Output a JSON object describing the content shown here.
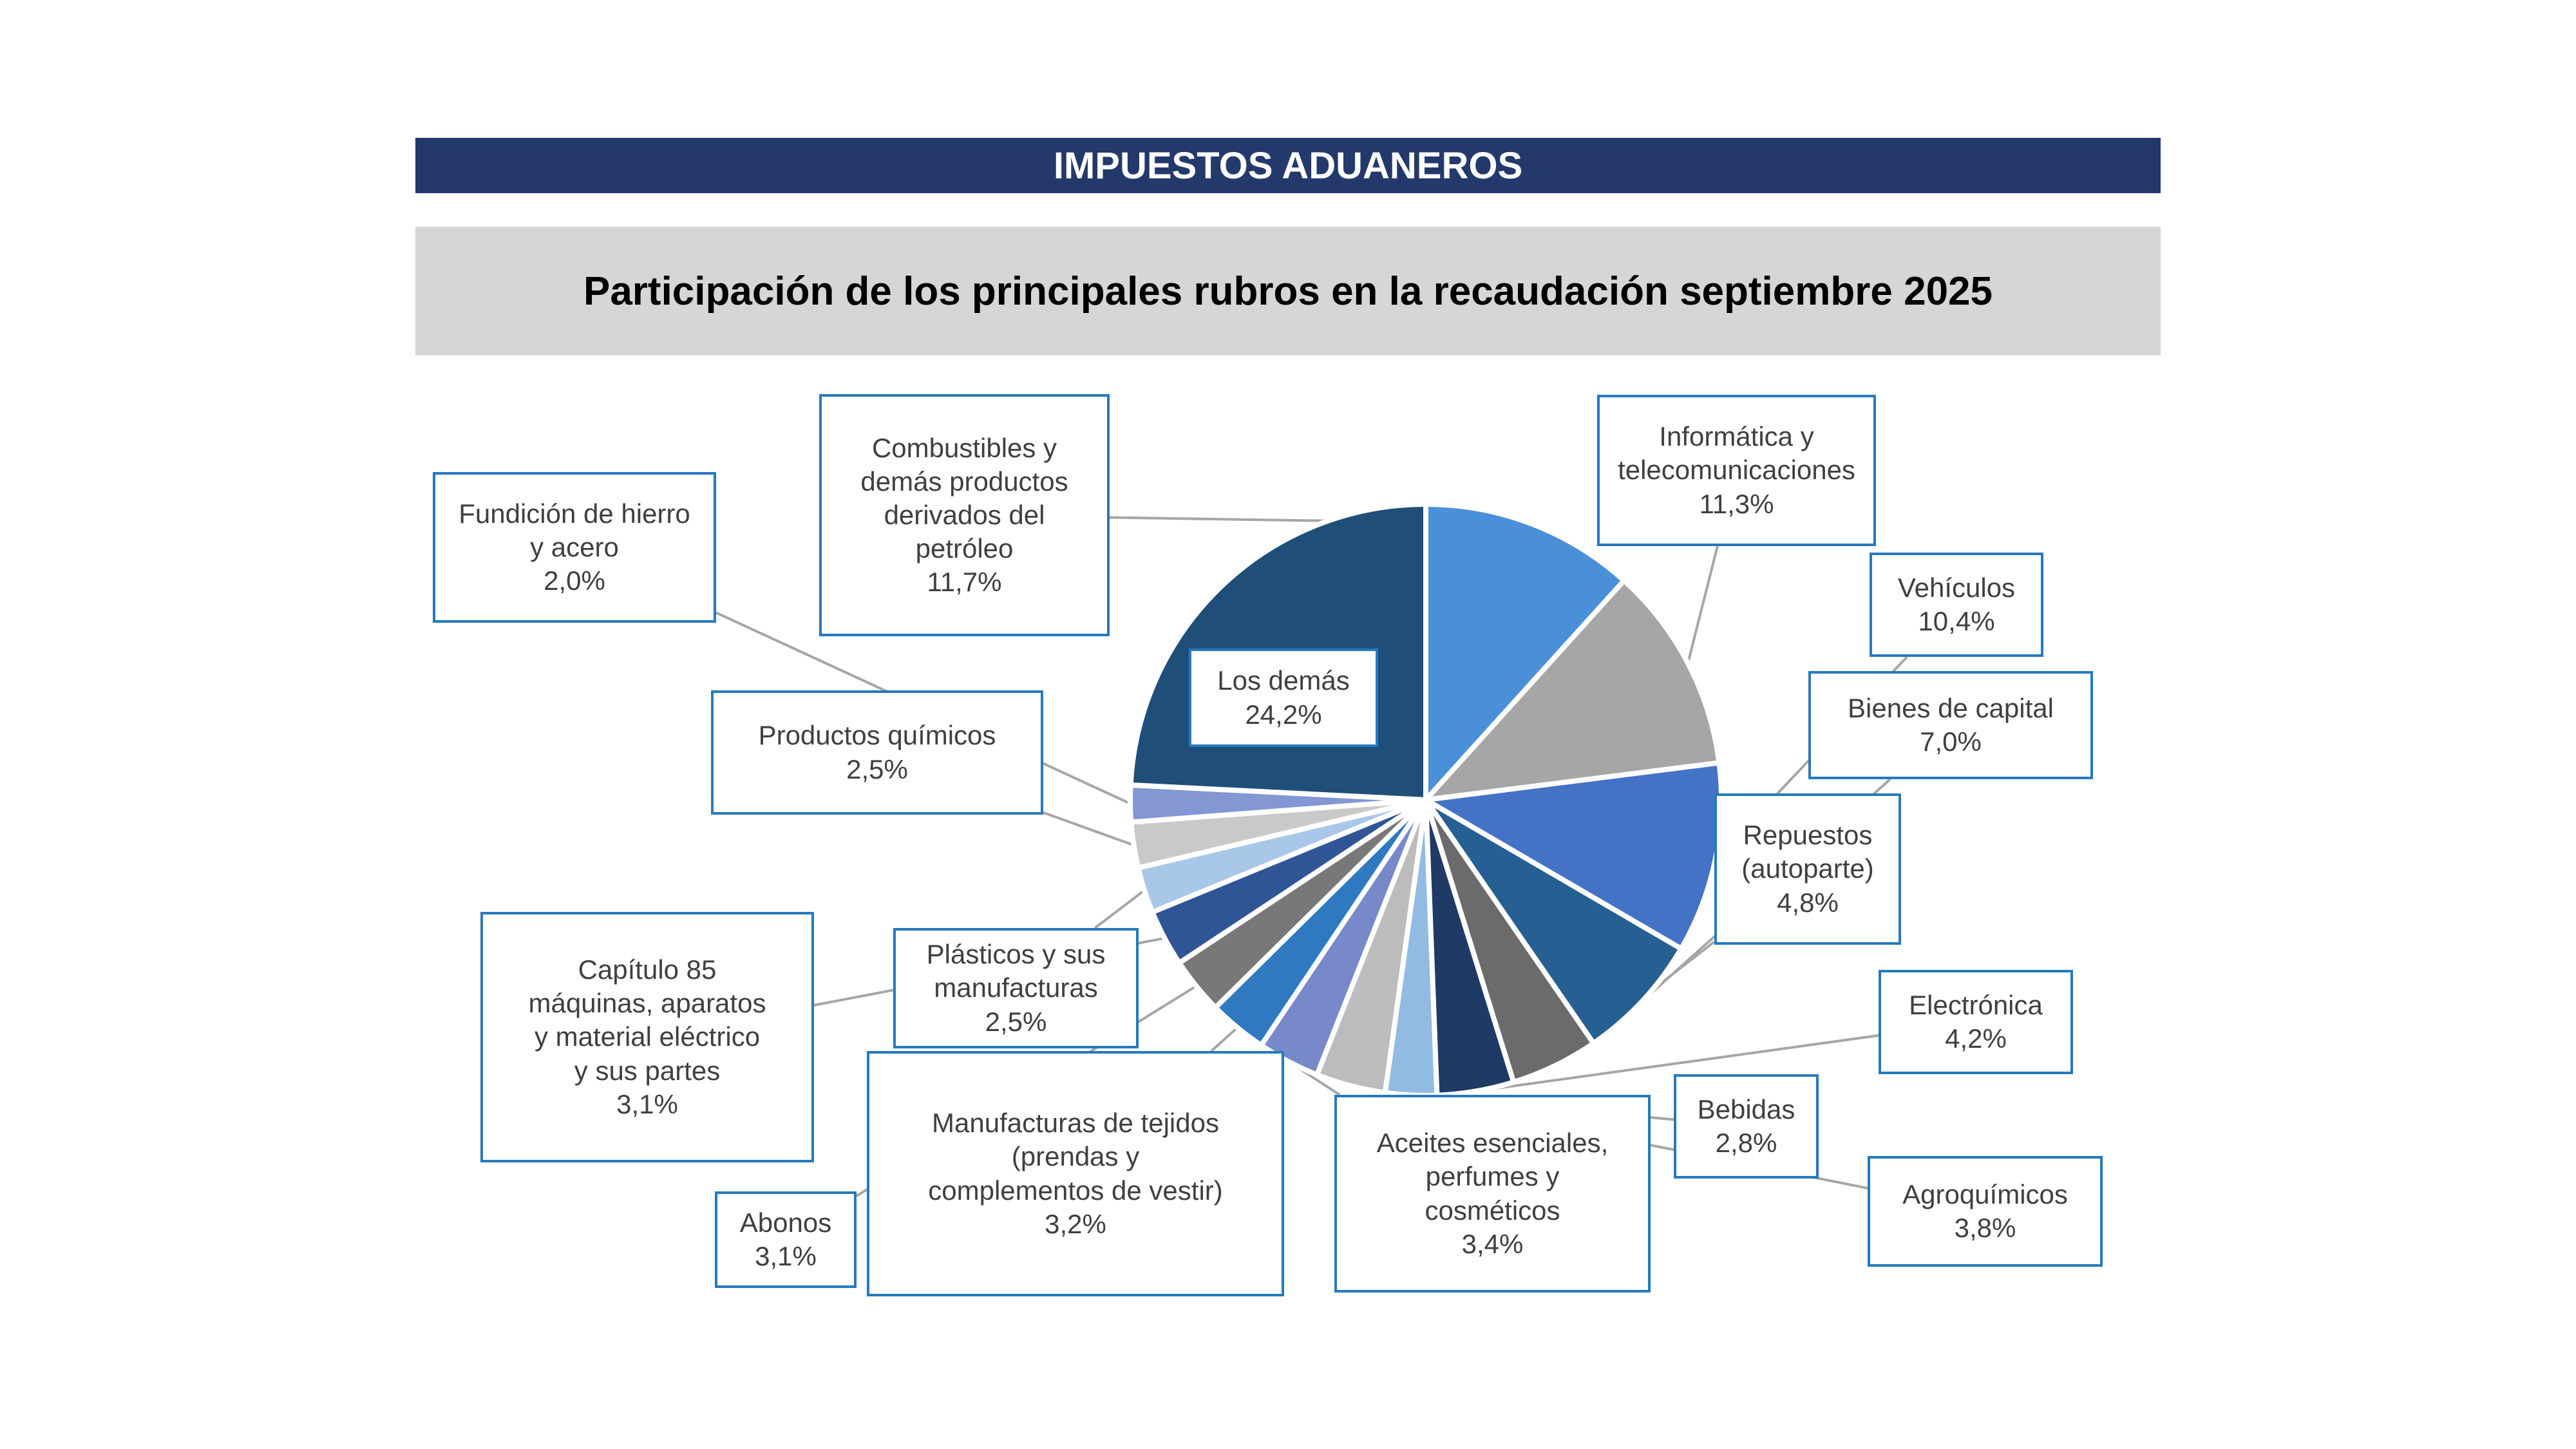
{
  "header": {
    "title": "IMPUESTOS ADUANEROS"
  },
  "subtitle": {
    "text": "Participación de los principales rubros en la recaudación septiembre 2025"
  },
  "colors": {
    "header_bg": "#24396B",
    "header_text": "#FFFFFF",
    "subtitle_bg": "#D6D6D6",
    "subtitle_text": "#000000",
    "label_box_border": "#2779BD",
    "label_text": "#3F3F3F",
    "leader_line": "#A6A6A6",
    "slice_gap": "#FFFFFF"
  },
  "chart_data": {
    "type": "pie",
    "title": "Participación de los principales rubros en la recaudación septiembre 2025",
    "unit": "%",
    "direction": "clockwise",
    "start_angle_deg": 0,
    "total": 100.0,
    "legend_position": "callout-labels",
    "slices": [
      {
        "key": "combustibles",
        "label": "Combustibles y\ndemás productos\nderivados del\npetróleo",
        "pct_label": "11,7%",
        "value": 11.7,
        "color": "#4A90D9"
      },
      {
        "key": "informatica",
        "label": "Informática y\ntelecomunicaciones",
        "pct_label": "11,3%",
        "value": 11.3,
        "color": "#A6A6A6"
      },
      {
        "key": "vehiculos",
        "label": "Vehículos",
        "pct_label": "10,4%",
        "value": 10.4,
        "color": "#4472C4"
      },
      {
        "key": "bienes",
        "label": "Bienes de capital",
        "pct_label": "7,0%",
        "value": 7.0,
        "color": "#265F92"
      },
      {
        "key": "repuestos",
        "label": "Repuestos\n(autoparte)",
        "pct_label": "4,8%",
        "value": 4.8,
        "color": "#6B6B6B"
      },
      {
        "key": "electronica",
        "label": "Electrónica",
        "pct_label": "4,2%",
        "value": 4.2,
        "color": "#203A66"
      },
      {
        "key": "bebidas",
        "label": "Bebidas",
        "pct_label": "2,8%",
        "value": 2.8,
        "color": "#92BBE2"
      },
      {
        "key": "agroquimicos",
        "label": "Agroquímicos",
        "pct_label": "3,8%",
        "value": 3.8,
        "color": "#BCBCBC"
      },
      {
        "key": "aceites",
        "label": "Aceites esenciales,\nperfumes y\ncosméticos",
        "pct_label": "3,4%",
        "value": 3.4,
        "color": "#7789C9"
      },
      {
        "key": "manufacturas",
        "label": "Manufacturas de tejidos\n(prendas y\ncomplementos de vestir)",
        "pct_label": "3,2%",
        "value": 3.2,
        "color": "#2E79C0"
      },
      {
        "key": "abonos",
        "label": "Abonos",
        "pct_label": "3,1%",
        "value": 3.1,
        "color": "#787878"
      },
      {
        "key": "capitulo85",
        "label": "Capítulo 85\nmáquinas, aparatos\ny material eléctrico\ny sus partes",
        "pct_label": "3,1%",
        "value": 3.1,
        "color": "#2F5597"
      },
      {
        "key": "plasticos",
        "label": "Plásticos y sus\nmanufacturas",
        "pct_label": "2,5%",
        "value": 2.5,
        "color": "#A9C7E8"
      },
      {
        "key": "productos",
        "label": "Productos químicos",
        "pct_label": "2,5%",
        "value": 2.5,
        "color": "#C9C9C9"
      },
      {
        "key": "fundicion",
        "label": "Fundición de hierro\ny acero",
        "pct_label": "2,0%",
        "value": 2.0,
        "color": "#8297D3"
      },
      {
        "key": "losdemas",
        "label": "Los demás",
        "pct_label": "24,2%",
        "value": 24.2,
        "color": "#1F4E79"
      }
    ]
  }
}
